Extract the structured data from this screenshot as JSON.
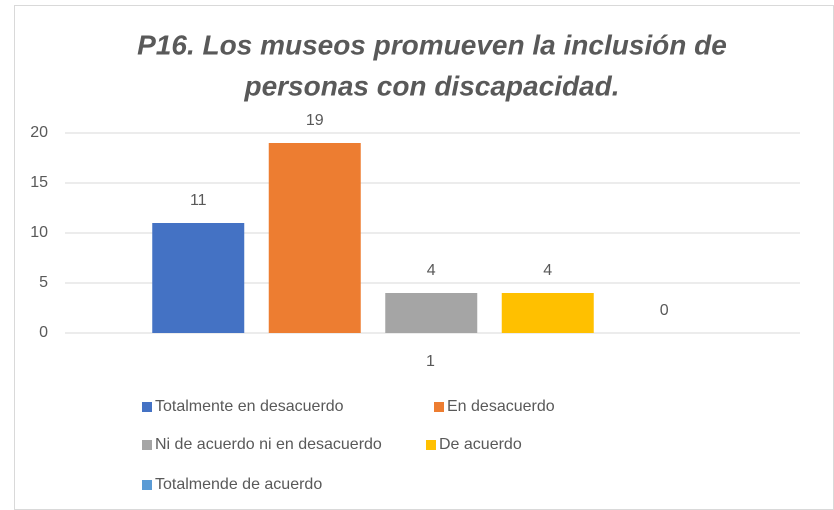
{
  "chart_data": {
    "type": "bar",
    "title": "P16. Los museos promueven la inclusión de",
    "title_line2": "personas con discapacidad.",
    "categories": [
      "1"
    ],
    "series": [
      {
        "name": "Totalmente en desacuerdo",
        "color": "#4472c4",
        "values": [
          11
        ]
      },
      {
        "name": "En desacuerdo",
        "color": "#ed7d31",
        "values": [
          19
        ]
      },
      {
        "name": "Ni de acuerdo ni en desacuerdo",
        "color": "#a5a5a5",
        "values": [
          4
        ]
      },
      {
        "name": "De acuerdo",
        "color": "#ffc000",
        "values": [
          4
        ]
      },
      {
        "name": "Totalmende de acuerdo",
        "color": "#5b9bd5",
        "values": [
          0
        ]
      }
    ],
    "ylim": [
      0,
      20
    ],
    "yticks": [
      0,
      5,
      10,
      15,
      20
    ],
    "grid": true,
    "legend": "bottom"
  }
}
